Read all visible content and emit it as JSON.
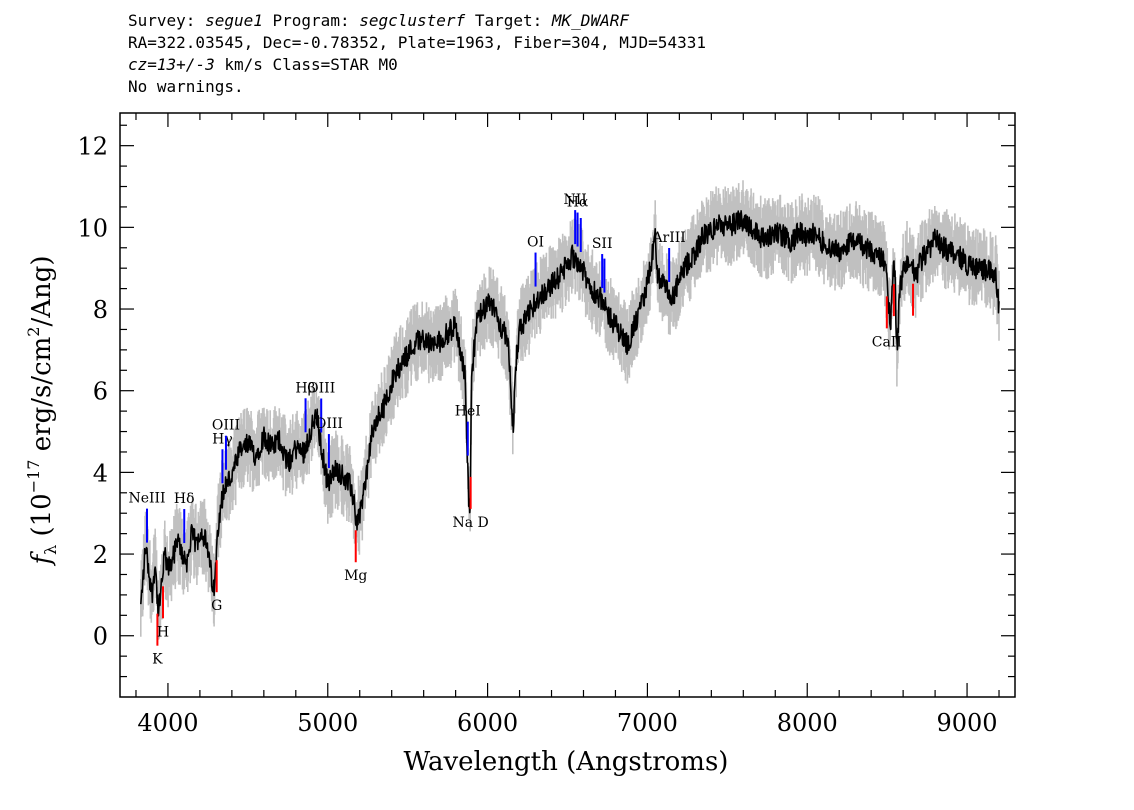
{
  "header": {
    "survey_label": "Survey:",
    "survey": "segue1",
    "program_label": "Program:",
    "program": "segclusterf",
    "target_label": "Target:",
    "target": "MK_DWARF",
    "line2": "RA=322.03545, Dec=-0.78352, Plate=1963, Fiber=304, MJD=54331",
    "cz_label": "cz=",
    "cz_value": "13+/-3",
    "cz_rest": " km/s Class=STAR M0",
    "line4": "No warnings."
  },
  "chart_data": {
    "type": "line",
    "xlabel": "Wavelength (Angstroms)",
    "ylabel": "f_λ (10^-17 erg/s/cm^2/Ang)",
    "ylabel_parts": {
      "f": "f",
      "sub": "λ",
      "pre": " (10",
      "exp1": "−17",
      "mid": " erg/s/cm",
      "exp2": "2",
      "post": "/Ang)"
    },
    "xlim": [
      3700,
      9300
    ],
    "ylim": [
      -1.5,
      12.8
    ],
    "xticks": [
      4000,
      5000,
      6000,
      7000,
      8000,
      9000
    ],
    "yticks": [
      0,
      2,
      4,
      6,
      8,
      10,
      12
    ],
    "xtick_labels": [
      "4000",
      "5000",
      "6000",
      "7000",
      "8000",
      "9000"
    ],
    "ytick_labels": [
      "0",
      "2",
      "4",
      "6",
      "8",
      "10",
      "12"
    ],
    "grid": false,
    "colors": {
      "flux": "#000000",
      "error": "#c0c0c0",
      "emission": "#0000ff",
      "absorption": "#ff0000"
    },
    "series": [
      {
        "x": [
          3830,
          3860,
          3880,
          3900,
          3920,
          3940,
          3960,
          3980,
          4000,
          4030,
          4060,
          4090,
          4120,
          4150,
          4180,
          4200,
          4230,
          4260,
          4290,
          4310,
          4330,
          4360,
          4400,
          4450,
          4500,
          4550,
          4600,
          4650,
          4700,
          4750,
          4800,
          4850,
          4900,
          4930,
          4960,
          5000,
          5050,
          5100,
          5150,
          5180,
          5200,
          5230,
          5270,
          5300,
          5350,
          5400,
          5450,
          5500,
          5550,
          5600,
          5650,
          5700,
          5750,
          5800,
          5830,
          5860,
          5880,
          5890,
          5900,
          5930,
          5960,
          6000,
          6050,
          6080,
          6100,
          6130,
          6160,
          6180,
          6200,
          6250,
          6300,
          6350,
          6400,
          6450,
          6500,
          6530,
          6560,
          6590,
          6620,
          6650,
          6700,
          6750,
          6800,
          6850,
          6880,
          6900,
          6950,
          7000,
          7030,
          7050,
          7060,
          7080,
          7100,
          7150,
          7200,
          7250,
          7300,
          7350,
          7400,
          7450,
          7500,
          7550,
          7600,
          7650,
          7700,
          7750,
          7800,
          7850,
          7900,
          7950,
          8000,
          8050,
          8100,
          8150,
          8200,
          8250,
          8300,
          8350,
          8400,
          8450,
          8480,
          8500,
          8520,
          8540,
          8550,
          8560,
          8580,
          8620,
          8660,
          8680,
          8700,
          8750,
          8800,
          8850,
          8900,
          8950,
          9000,
          9050,
          9100,
          9150,
          9180,
          9200
        ],
        "y": [
          0.7,
          2.2,
          1.6,
          1.0,
          1.8,
          0.5,
          1.2,
          2.0,
          1.6,
          1.9,
          2.3,
          2.0,
          1.8,
          2.5,
          2.2,
          2.6,
          2.4,
          1.8,
          1.0,
          2.6,
          3.2,
          3.7,
          3.9,
          4.5,
          4.7,
          4.4,
          4.9,
          4.6,
          4.8,
          4.2,
          4.6,
          4.5,
          5.1,
          5.4,
          4.6,
          3.7,
          4.1,
          3.9,
          3.6,
          2.8,
          3.0,
          3.6,
          4.8,
          5.2,
          5.6,
          6.2,
          6.6,
          6.9,
          7.2,
          7.3,
          7.1,
          7.2,
          7.4,
          7.6,
          7.0,
          6.3,
          3.5,
          2.8,
          6.4,
          7.6,
          7.9,
          8.1,
          8.0,
          7.6,
          7.5,
          7.0,
          5.1,
          6.8,
          7.5,
          7.8,
          8.2,
          8.4,
          8.6,
          8.8,
          9.1,
          9.3,
          9.2,
          9.0,
          8.7,
          8.5,
          8.3,
          7.9,
          7.6,
          7.3,
          7.1,
          7.4,
          7.9,
          8.6,
          9.3,
          9.8,
          8.9,
          8.7,
          8.6,
          8.2,
          8.7,
          9.1,
          9.4,
          9.8,
          9.9,
          10.1,
          10.0,
          10.1,
          10.2,
          10.0,
          9.8,
          9.7,
          9.9,
          9.8,
          9.6,
          9.9,
          9.7,
          9.9,
          9.6,
          9.5,
          9.4,
          9.6,
          9.7,
          9.5,
          9.4,
          9.3,
          9.2,
          8.6,
          7.6,
          9.0,
          8.8,
          6.9,
          8.5,
          9.2,
          9.0,
          8.7,
          9.1,
          9.4,
          9.7,
          9.5,
          9.4,
          9.3,
          9.1,
          9.0,
          9.0,
          8.9,
          8.8,
          8.0
        ]
      }
    ],
    "line_labels": [
      {
        "text": "NeIII",
        "x": 3869,
        "kind": "emission"
      },
      {
        "text": "Hδ",
        "x": 4102,
        "kind": "emission"
      },
      {
        "text": "Hγ",
        "x": 4341,
        "kind": "emission"
      },
      {
        "text": "OIII",
        "x": 4363,
        "kind": "emission"
      },
      {
        "text": "Hβ",
        "x": 4861,
        "kind": "emission"
      },
      {
        "text": "OIII",
        "x": 4959,
        "kind": "emission"
      },
      {
        "text": "OIII",
        "x": 5007,
        "kind": "emission"
      },
      {
        "text": "HeI",
        "x": 5876,
        "kind": "emission"
      },
      {
        "text": "OI",
        "x": 6300,
        "kind": "emission"
      },
      {
        "text": "NII",
        "x": 6548,
        "kind": "emission"
      },
      {
        "text": "Hα",
        "x": 6563,
        "kind": "emission"
      },
      {
        "text": "NII",
        "x": 6583,
        "kind": "emission"
      },
      {
        "text": "SII",
        "x": 6717,
        "kind": "emission"
      },
      {
        "text": "SII",
        "x": 6731,
        "kind": "emission"
      },
      {
        "text": "ArIII",
        "x": 7136,
        "kind": "emission"
      },
      {
        "text": "K",
        "x": 3934,
        "kind": "absorption"
      },
      {
        "text": "H",
        "x": 3969,
        "kind": "absorption"
      },
      {
        "text": "G",
        "x": 4305,
        "kind": "absorption"
      },
      {
        "text": "Mg",
        "x": 5175,
        "kind": "absorption"
      },
      {
        "text": "Na D",
        "x": 5894,
        "kind": "absorption"
      },
      {
        "text": "CaII",
        "x": 8498,
        "kind": "absorption"
      },
      {
        "text": "CaII",
        "x": 8542,
        "kind": "absorption"
      },
      {
        "text": "CaII",
        "x": 8662,
        "kind": "absorption"
      }
    ]
  }
}
